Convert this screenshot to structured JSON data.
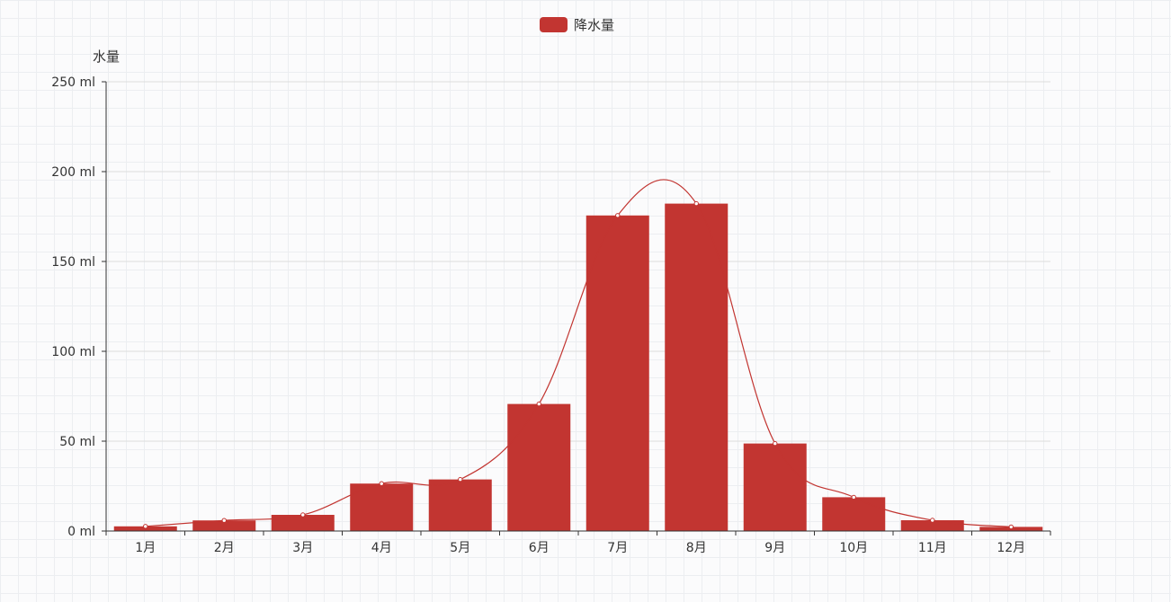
{
  "chart_data": {
    "type": "bar",
    "title": "",
    "xlabel": "",
    "ylabel": "水量",
    "y_unit": "ml",
    "ylim": [
      0,
      250
    ],
    "y_ticks": [
      0,
      50,
      100,
      150,
      200,
      250
    ],
    "y_tick_labels": [
      "0 ml",
      "50 ml",
      "100 ml",
      "150 ml",
      "200 ml",
      "250 ml"
    ],
    "categories": [
      "1月",
      "2月",
      "3月",
      "4月",
      "5月",
      "6月",
      "7月",
      "8月",
      "9月",
      "10月",
      "11月",
      "12月"
    ],
    "series": [
      {
        "name": "降水量",
        "type": "bar",
        "color": "#c23531",
        "values": [
          2.6,
          5.9,
          9.0,
          26.4,
          28.7,
          70.7,
          175.6,
          182.2,
          48.7,
          18.8,
          6.0,
          2.3
        ]
      },
      {
        "type": "line",
        "color": "#c23531",
        "values": [
          2.6,
          5.9,
          9.0,
          26.4,
          28.7,
          70.7,
          175.6,
          182.2,
          48.7,
          18.8,
          6.0,
          2.3
        ]
      }
    ],
    "legend": {
      "position": "top-center",
      "items": [
        "降水量"
      ]
    },
    "grid": true
  },
  "colors": {
    "bar": "#c23531",
    "axis": "#333333",
    "gridline": "#dddddd"
  }
}
